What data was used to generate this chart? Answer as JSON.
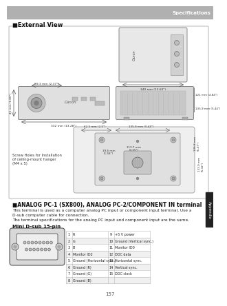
{
  "page_bg": "#f0f0f0",
  "header_bg": "#b0b0b0",
  "header_text": "Specifications",
  "header_text_color": "#ffffff",
  "tab_color": "#222222",
  "tab_text": "Appendix",
  "section1_title": "■External View",
  "section2_title": "■ANALOG PC-1 (SX800), ANALOG PC-2/COMPONENT IN terminal",
  "section2_body1": "This terminal is used as a computer analog PC input or component input terminal. Use a",
  "section2_body2": "D-sub computer cable for connection.",
  "section2_body3": "The terminal specifications for the analog PC input and component input are the same.",
  "mini_dsub_label": "Mini D-sub 15-pin",
  "table_data": [
    [
      "1",
      "R",
      "9",
      "+5 V power"
    ],
    [
      "2",
      "G",
      "10",
      "Ground (Vertical sync.)"
    ],
    [
      "3",
      "B",
      "11",
      "Monitor ID0"
    ],
    [
      "4",
      "Monitor ID2",
      "12",
      "DDC data"
    ],
    [
      "5",
      "Ground (Horizontal sync.)",
      "13",
      "Horizontal sync."
    ],
    [
      "6",
      "Ground (R)",
      "14",
      "Vertical sync."
    ],
    [
      "7",
      "Ground (G)",
      "15",
      "DDC clock"
    ],
    [
      "8",
      "Ground (B)",
      "",
      ""
    ]
  ],
  "page_number": "157",
  "dims": {
    "front_w": "59.3 mm (2.37\")",
    "front_h": "45 mm (1.80\")",
    "front_d": "332 mm (13.28\")",
    "top_w": "340 mm (13.60\")",
    "side_h1": "121 mm (4.84\")",
    "side_h2": "135.9 mm (5.44\")",
    "bot_w1": "62.5 mm (2.5\")",
    "bot_w2": "135.9 mm (5.44\")",
    "bot_d1": "39.6 mm\n(1.58\")",
    "bot_d2": "113.7 mm\n(4.55\")",
    "bot_h1": "136.8 mm\n(5.47\")",
    "bot_h2": "133.0 mm\n(5.32\")",
    "screw_text": "Screw Holes for Installation\nof ceiling-mount hanger\n(M4 x 5)"
  }
}
